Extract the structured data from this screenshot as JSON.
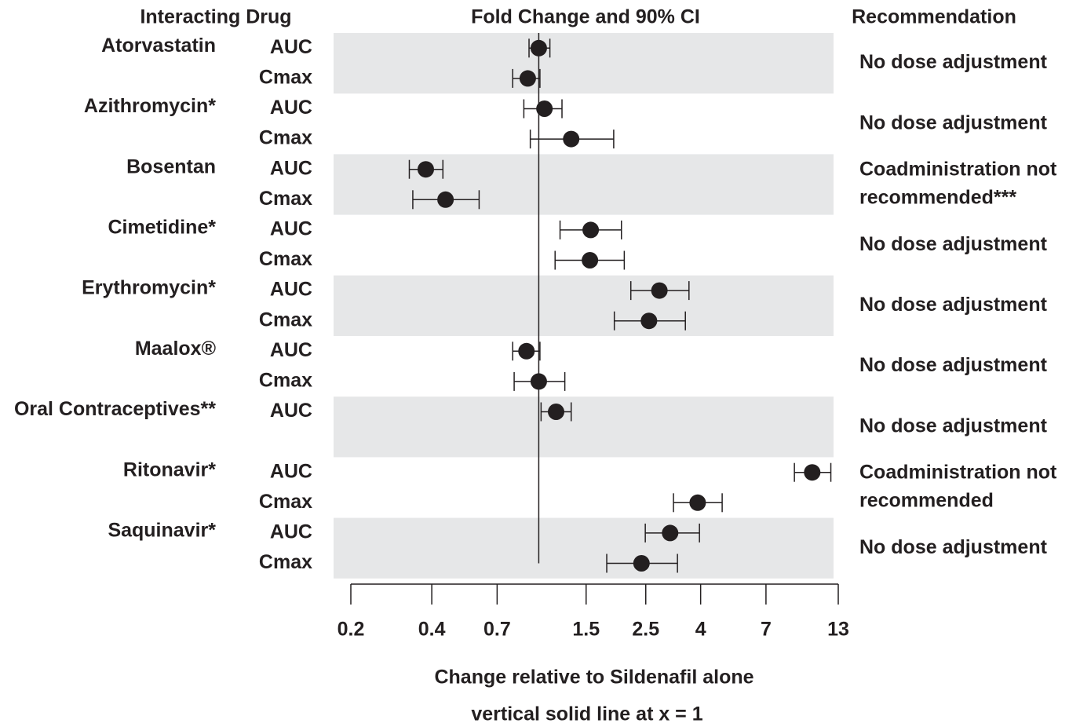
{
  "chart_data": {
    "type": "forest",
    "headers": {
      "drug": "Interacting Drug",
      "plot": "Fold Change and 90% CI",
      "recommendation": "Recommendation"
    },
    "xlabel": "Change relative to Sildenafil alone",
    "annotation": "vertical solid line at x = 1",
    "reference_line": 1,
    "log_x": true,
    "xlim": [
      0.2,
      13
    ],
    "xticks": [
      0.2,
      0.4,
      0.7,
      1.5,
      2.5,
      4,
      7,
      13
    ],
    "color": "#231f20",
    "band_color": "#e6e7e8",
    "groups": [
      {
        "drug": "Atorvastatin",
        "recommendation": [
          "No dose adjustment"
        ],
        "rows": [
          {
            "label": "AUC",
            "value": 1.0,
            "ci": [
              0.92,
              1.1
            ]
          },
          {
            "label": "Cmax",
            "value": 0.91,
            "ci": [
              0.8,
              1.01
            ]
          }
        ]
      },
      {
        "drug": "Azithromycin*",
        "recommendation": [
          "No dose adjustment"
        ],
        "rows": [
          {
            "label": "AUC",
            "value": 1.05,
            "ci": [
              0.88,
              1.22
            ]
          },
          {
            "label": "Cmax",
            "value": 1.32,
            "ci": [
              0.93,
              1.9
            ]
          }
        ]
      },
      {
        "drug": "Bosentan",
        "recommendation": [
          "Coadministration not",
          "recommended***"
        ],
        "rows": [
          {
            "label": "AUC",
            "value": 0.38,
            "ci": [
              0.33,
              0.44
            ]
          },
          {
            "label": "Cmax",
            "value": 0.45,
            "ci": [
              0.34,
              0.6
            ]
          }
        ]
      },
      {
        "drug": "Cimetidine*",
        "recommendation": [
          "No dose adjustment"
        ],
        "rows": [
          {
            "label": "AUC",
            "value": 1.56,
            "ci": [
              1.2,
              2.03
            ]
          },
          {
            "label": "Cmax",
            "value": 1.55,
            "ci": [
              1.15,
              2.08
            ]
          }
        ]
      },
      {
        "drug": "Erythromycin*",
        "recommendation": [
          "No dose adjustment"
        ],
        "rows": [
          {
            "label": "AUC",
            "value": 2.81,
            "ci": [
              2.2,
              3.62
            ]
          },
          {
            "label": "Cmax",
            "value": 2.57,
            "ci": [
              1.91,
              3.51
            ]
          }
        ]
      },
      {
        "drug": "Maalox®",
        "recommendation": [
          "No dose adjustment"
        ],
        "rows": [
          {
            "label": "AUC",
            "value": 0.9,
            "ci": [
              0.8,
              1.01
            ]
          },
          {
            "label": "Cmax",
            "value": 1.0,
            "ci": [
              0.81,
              1.25
            ]
          }
        ]
      },
      {
        "drug": "Oral Contraceptives**",
        "recommendation": [
          "No dose adjustment"
        ],
        "rows": [
          {
            "label": "AUC",
            "value": 1.16,
            "ci": [
              1.02,
              1.32
            ]
          }
        ]
      },
      {
        "drug": "Ritonavir*",
        "recommendation": [
          "Coadministration not",
          "recommended"
        ],
        "rows": [
          {
            "label": "AUC",
            "value": 10.4,
            "ci": [
              8.93,
              12.2
            ]
          },
          {
            "label": "Cmax",
            "value": 3.9,
            "ci": [
              3.17,
              4.81
            ]
          }
        ]
      },
      {
        "drug": "Saquinavir*",
        "recommendation": [
          "No dose adjustment"
        ],
        "rows": [
          {
            "label": "AUC",
            "value": 3.08,
            "ci": [
              2.49,
              3.96
            ]
          },
          {
            "label": "Cmax",
            "value": 2.41,
            "ci": [
              1.79,
              3.28
            ]
          }
        ]
      }
    ]
  }
}
